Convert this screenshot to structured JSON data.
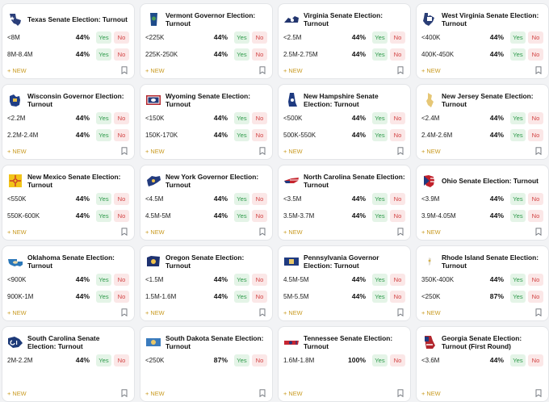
{
  "labels": {
    "yes": "Yes",
    "no": "No",
    "new": "+ NEW"
  },
  "markets": [
    {
      "title": "Texas Senate Election: Turnout",
      "icon": "texas-flag-icon",
      "outcomes": [
        {
          "range": "<8M",
          "pct": "44%"
        },
        {
          "range": "8M-8.4M",
          "pct": "44%"
        }
      ]
    },
    {
      "title": "Vermont Governor Election: Turnout",
      "icon": "vermont-flag-icon",
      "outcomes": [
        {
          "range": "<225K",
          "pct": "44%"
        },
        {
          "range": "225K-250K",
          "pct": "44%"
        }
      ]
    },
    {
      "title": "Virginia Senate Election: Turnout",
      "icon": "virginia-flag-icon",
      "outcomes": [
        {
          "range": "<2.5M",
          "pct": "44%"
        },
        {
          "range": "2.5M-2.75M",
          "pct": "44%"
        }
      ]
    },
    {
      "title": "West Virginia Senate Election: Turnout",
      "icon": "west-virginia-flag-icon",
      "outcomes": [
        {
          "range": "<400K",
          "pct": "44%"
        },
        {
          "range": "400K-450K",
          "pct": "44%"
        }
      ]
    },
    {
      "title": "Wisconsin Governor Election: Turnout",
      "icon": "wisconsin-flag-icon",
      "outcomes": [
        {
          "range": "<2.2M",
          "pct": "44%"
        },
        {
          "range": "2.2M-2.4M",
          "pct": "44%"
        }
      ]
    },
    {
      "title": "Wyoming Senate Election: Turnout",
      "icon": "wyoming-flag-icon",
      "outcomes": [
        {
          "range": "<150K",
          "pct": "44%"
        },
        {
          "range": "150K-170K",
          "pct": "44%"
        }
      ]
    },
    {
      "title": "New Hampshire Senate Election: Turnout",
      "icon": "new-hampshire-flag-icon",
      "outcomes": [
        {
          "range": "<500K",
          "pct": "44%"
        },
        {
          "range": "500K-550K",
          "pct": "44%"
        }
      ]
    },
    {
      "title": "New Jersey Senate Election: Turnout",
      "icon": "new-jersey-flag-icon",
      "outcomes": [
        {
          "range": "<2.4M",
          "pct": "44%"
        },
        {
          "range": "2.4M-2.6M",
          "pct": "44%"
        }
      ]
    },
    {
      "title": "New Mexico Senate Election: Turnout",
      "icon": "new-mexico-flag-icon",
      "outcomes": [
        {
          "range": "<550K",
          "pct": "44%"
        },
        {
          "range": "550K-600K",
          "pct": "44%"
        }
      ]
    },
    {
      "title": "New York Governor Election: Turnout",
      "icon": "new-york-flag-icon",
      "outcomes": [
        {
          "range": "<4.5M",
          "pct": "44%"
        },
        {
          "range": "4.5M-5M",
          "pct": "44%"
        }
      ]
    },
    {
      "title": "North Carolina Senate Election: Turnout",
      "icon": "north-carolina-flag-icon",
      "outcomes": [
        {
          "range": "<3.5M",
          "pct": "44%"
        },
        {
          "range": "3.5M-3.7M",
          "pct": "44%"
        }
      ]
    },
    {
      "title": "Ohio Senate Election: Turnout",
      "icon": "ohio-flag-icon",
      "outcomes": [
        {
          "range": "<3.9M",
          "pct": "44%"
        },
        {
          "range": "3.9M-4.05M",
          "pct": "44%"
        }
      ]
    },
    {
      "title": "Oklahoma Senate Election: Turnout",
      "icon": "oklahoma-flag-icon",
      "outcomes": [
        {
          "range": "<900K",
          "pct": "44%"
        },
        {
          "range": "900K-1M",
          "pct": "44%"
        }
      ]
    },
    {
      "title": "Oregon Senate Election: Turnout",
      "icon": "oregon-flag-icon",
      "outcomes": [
        {
          "range": "<1.5M",
          "pct": "44%"
        },
        {
          "range": "1.5M-1.6M",
          "pct": "44%"
        }
      ]
    },
    {
      "title": "Pennsylvania Governor Election: Turnout",
      "icon": "pennsylvania-flag-icon",
      "outcomes": [
        {
          "range": "4.5M-5M",
          "pct": "44%"
        },
        {
          "range": "5M-5.5M",
          "pct": "44%"
        }
      ]
    },
    {
      "title": "Rhode Island Senate Election: Turnout",
      "icon": "rhode-island-flag-icon",
      "outcomes": [
        {
          "range": "350K-400K",
          "pct": "44%"
        },
        {
          "range": "<250K",
          "pct": "87%"
        }
      ]
    },
    {
      "title": "South Carolina Senate Election: Turnout",
      "icon": "south-carolina-flag-icon",
      "outcomes": [
        {
          "range": "2M-2.2M",
          "pct": "44%"
        }
      ]
    },
    {
      "title": "South Dakota Senate Election: Turnout",
      "icon": "south-dakota-flag-icon",
      "outcomes": [
        {
          "range": "<250K",
          "pct": "87%"
        }
      ]
    },
    {
      "title": "Tennessee Senate Election: Turnout",
      "icon": "tennessee-flag-icon",
      "outcomes": [
        {
          "range": "1.6M-1.8M",
          "pct": "100%"
        }
      ]
    },
    {
      "title": "Georgia Senate Election: Turnout (First Round)",
      "icon": "georgia-flag-icon",
      "outcomes": [
        {
          "range": "<3.6M",
          "pct": "44%"
        }
      ]
    }
  ],
  "colors": {
    "yes_text": "#2f9a4b",
    "yes_bg": "#e4f4e7",
    "no_text": "#d24343",
    "no_bg": "#fbe7e7",
    "new_text": "#c99a20"
  }
}
